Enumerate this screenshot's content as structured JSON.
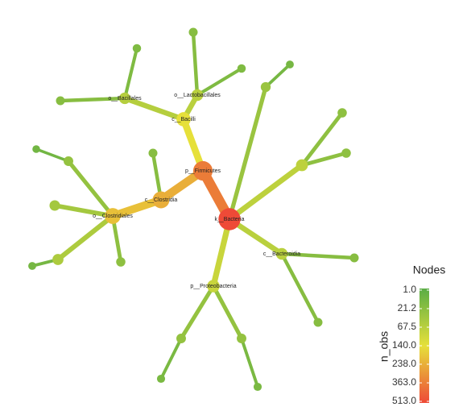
{
  "chart_data": {
    "type": "heat-tree",
    "nodes": [
      {
        "name": "k__Bacteria",
        "parent": null,
        "n_obs": 513
      },
      {
        "name": "p__Firmicutes",
        "parent": 0,
        "n_obs": 363
      },
      {
        "name": "c__Clostridia",
        "parent": 1,
        "n_obs": 238
      },
      {
        "name": "o__Clostridiales",
        "parent": 2,
        "n_obs": 200
      },
      {
        "name": "c__Bacilli",
        "parent": 1,
        "n_obs": 140
      },
      {
        "name": "p__Proteobacteria",
        "parent": 0,
        "n_obs": 90
      },
      {
        "name": "c__Bacteroidia",
        "parent": 0,
        "n_obs": 70
      },
      {
        "name": null,
        "parent": 0,
        "n_obs": 75
      },
      {
        "name": null,
        "parent": 0,
        "n_obs": 35
      },
      {
        "name": "o__Lactobacillales",
        "parent": 4,
        "n_obs": 70
      },
      {
        "name": "o__Bacillales",
        "parent": 4,
        "n_obs": 65
      },
      {
        "name": null,
        "parent": 3,
        "n_obs": 55
      },
      {
        "name": null,
        "parent": 3,
        "n_obs": 45
      },
      {
        "name": null,
        "parent": 3,
        "n_obs": 30
      },
      {
        "name": null,
        "parent": 3,
        "n_obs": 25
      },
      {
        "name": null,
        "parent": 2,
        "n_obs": 20
      },
      {
        "name": null,
        "parent": 5,
        "n_obs": 30
      },
      {
        "name": null,
        "parent": 5,
        "n_obs": 30
      },
      {
        "name": null,
        "parent": 6,
        "n_obs": 20
      },
      {
        "name": null,
        "parent": 6,
        "n_obs": 20
      },
      {
        "name": null,
        "parent": 7,
        "n_obs": 25
      },
      {
        "name": null,
        "parent": 7,
        "n_obs": 25
      },
      {
        "name": null,
        "parent": 9,
        "n_obs": 20
      },
      {
        "name": null,
        "parent": 9,
        "n_obs": 15
      },
      {
        "name": null,
        "parent": 10,
        "n_obs": 20
      },
      {
        "name": null,
        "parent": 10,
        "n_obs": 15
      },
      {
        "name": null,
        "parent": 8,
        "n_obs": 10
      },
      {
        "name": null,
        "parent": 16,
        "n_obs": 12
      },
      {
        "name": null,
        "parent": 17,
        "n_obs": 12
      },
      {
        "name": null,
        "parent": 11,
        "n_obs": 10
      },
      {
        "name": null,
        "parent": 13,
        "n_obs": 8
      }
    ],
    "legend_title": "Nodes",
    "legend_axis_label": "n_obs",
    "color_scale": "sqrt",
    "clim": [
      1,
      513
    ],
    "colors": [
      "#5aad45",
      "#e6e03a",
      "#ee4a37"
    ],
    "ticks": [
      {
        "value": 1,
        "label": "1.0"
      },
      {
        "value": 21.2,
        "label": "21.2"
      },
      {
        "value": 67.5,
        "label": "67.5"
      },
      {
        "value": 140,
        "label": "140.0"
      },
      {
        "value": 238,
        "label": "238.0"
      },
      {
        "value": 363,
        "label": "363.0"
      },
      {
        "value": 513,
        "label": "513.0"
      }
    ]
  }
}
